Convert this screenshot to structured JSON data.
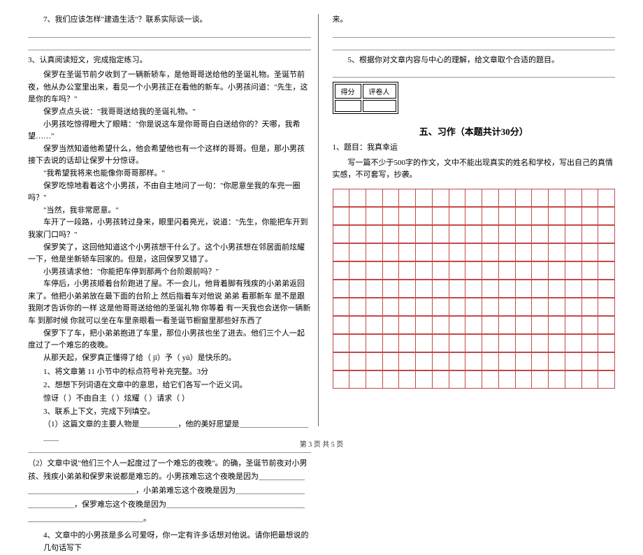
{
  "left": {
    "q7": "7、我们应该怎样\"建造生活\"？联系实际谈一谈。",
    "q3_intro": "3、认真阅读短文，完成指定练习。",
    "passage": {
      "p1": "保罗在圣诞节前夕收到了一辆新轿车，是他哥哥送给他的圣诞礼物。圣诞节前夜，他从办公室里出来，看见一个小男孩正在看他的新车。小男孩问道：\"先生，这是你的车吗？\"",
      "p2": "保罗点点头说：\"我哥哥送给我的圣诞礼物。\"",
      "p3": "小男孩吃惊得瞪大了眼睛：\"你是说这车是你哥哥白白送给你的？天哪，我希望……\"",
      "p4": "保罗当然知道他希望什么，他会希望他也有一个这样的哥哥。但是，那小男孩接下去说的话却让保罗十分惊讶。",
      "p5": "\"我希望我将来也能像你哥哥那样。\"",
      "p6": "保罗吃惊地看着这个小男孩，不由自主地问了一句：\"你愿意坐我的车兜一圈吗？\"",
      "p7": "\"当然，我非常愿意。\"",
      "p8": "车开了一段路，小男孩转过身来，眼里闪着亮光，说道：\"先生，你能把车开到我家门口吗？\"",
      "p9": "保罗笑了，这回他知道这个小男孩想干什么了。这个小男孩想在邻居面前炫耀一下，他是坐新轿车回家的。但是，这回保罗又错了。",
      "p10": "小男孩请求他：\"你能把车停到那两个台阶跟前吗？\"",
      "p11": "车停后，小男孩顺着台阶跑进了屋。不一会儿，他背着脚有残疾的小弟弟返回来了。他把小弟弟放在最下面的台阶上 然后指着车对他说 弟弟 看那新车 是不是跟我刚才告诉你的一样 这是他哥哥送给他的圣诞礼物 你等着 有一天我也会送你一辆新车 到那时候 你就可以坐在车里亲眼看一看圣诞节橱窗里那些好东西了",
      "p12": "保罗下了车，把小弟弟抱进了车里，那位小男孩也坐了进去。他们三个人一起度过了一个难忘的夜晚。",
      "p13": "从那天起，保罗真正懂得了给（ jǐ）予（ yǔ）是快乐的。"
    },
    "sub1": "1、将文章第 11 小节中的标点符号补充完整。3分",
    "sub2": "2、想想下列词语在文章中的意思，给它们各写一个近义词。",
    "sub2_words": "惊讶（    ）不由自主（    ）炫耀（      ）请求（    ）",
    "sub3": "3、联系上下文，完成下列填空。",
    "sub3_1": "（1）这篇文章的主要人物是＿＿＿＿＿，他的美好愿望是＿＿＿＿＿＿＿＿＿＿＿",
    "sub3_2": "（2）文章中说\"他们三个人一起度过了一个难忘的夜晚\"。的确，圣诞节前夜对小男孩、残疾小弟弟和保罗来说都是难忘的。小男孩难忘这个夜晚是因为＿＿＿＿＿＿＿＿＿＿＿＿＿＿＿＿＿＿＿＿，小弟弟难忘这个夜晚是因为＿＿＿＿＿＿＿＿＿＿＿＿＿＿＿，保罗难忘这个夜晚是因为＿＿＿＿＿＿＿＿＿＿＿＿＿＿＿＿＿＿＿＿＿＿＿＿＿＿＿＿＿＿＿＿＿。",
    "sub4": "4、文章中的小男孩是多么可爱呀，你一定有许多话想对他说。请你把最想说的几句话写下"
  },
  "right": {
    "continue": "来。",
    "q5": "5、根据你对文章内容与中心的理解，给文章取个合适的题目。",
    "score_labels": [
      "得分",
      "评卷人"
    ],
    "section_title": "五、习作（本题共计30分）",
    "essay_title": "1、题目：我真幸运",
    "essay_req": "写一篇不少于500字的作文，文中不能出现真实的姓名和学校，写出自己的真情实感，不可套写，抄袭。",
    "grid": {
      "rows": 11,
      "cols": 17,
      "border_color": "#c44848"
    }
  },
  "footer": "第 3 页 共 5 页"
}
